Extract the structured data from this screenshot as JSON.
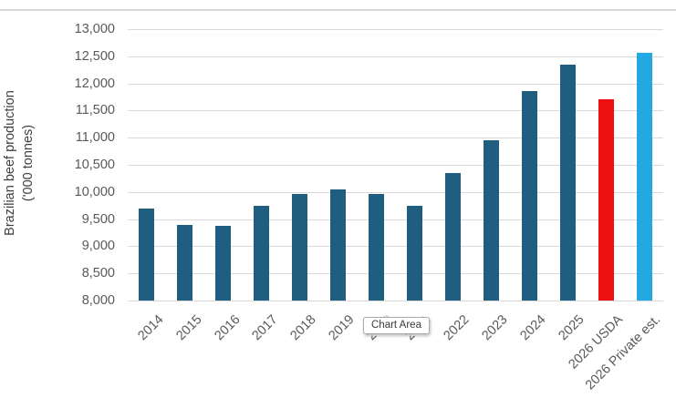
{
  "tooltip": {
    "label": "Chart Area"
  },
  "colors": {
    "default_bar": "#1F5E7E",
    "usda_bar": "#EE1111",
    "private_bar": "#22A9E2",
    "gridline": "#D9D9D9",
    "tick_text": "#595959",
    "axis_title_text": "#404040"
  },
  "chart_data": {
    "type": "bar",
    "title": "",
    "ylabel_line1": "Brazilian beef production",
    "ylabel_line2": "('000 tonnes)",
    "xlabel": "",
    "grid": true,
    "legend": "none",
    "ylim": [
      8000,
      13000
    ],
    "ytick_step": 500,
    "ytick_labels": [
      "8,000",
      "8,500",
      "9,000",
      "9,500",
      "10,000",
      "10,500",
      "11,000",
      "11,500",
      "12,000",
      "12,500",
      "13,000"
    ],
    "categories": [
      "2014",
      "2015",
      "2016",
      "2017",
      "2018",
      "2019",
      "2020",
      "2021",
      "2022",
      "2023",
      "2024",
      "2025",
      "2026 USDA",
      "2026 Private est."
    ],
    "values": [
      9700,
      9400,
      9370,
      9750,
      9970,
      10050,
      9970,
      9740,
      10350,
      10950,
      11860,
      12340,
      11700,
      12570
    ],
    "bar_colors": [
      "#1F5E7E",
      "#1F5E7E",
      "#1F5E7E",
      "#1F5E7E",
      "#1F5E7E",
      "#1F5E7E",
      "#1F5E7E",
      "#1F5E7E",
      "#1F5E7E",
      "#1F5E7E",
      "#1F5E7E",
      "#1F5E7E",
      "#EE1111",
      "#22A9E2"
    ]
  }
}
